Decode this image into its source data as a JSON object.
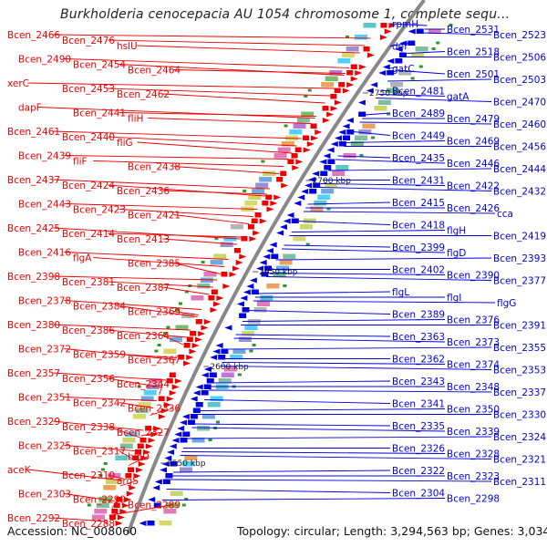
{
  "header": {
    "title": "Burkholderia cenocepacia AU 1054 chromosome 1, complete sequ..."
  },
  "footer": {
    "accession": "Accession: NC_008060",
    "topology": "Topology: circular; Length: 3,294,563 bp; Genes: 3,034"
  },
  "colors": {
    "reverse_strand": "#ee0000",
    "forward_strand": "#0000dd",
    "backbone": "#888888"
  },
  "scale_ticks": [
    "2750 kbp",
    "2700 kbp",
    "2650 kbp",
    "2600 kbp",
    "2550 kbp"
  ],
  "left_labels": [
    "Bcen_2466",
    "Bcen_2476",
    "hslU",
    "Bcen_2490",
    "Bcen_2454",
    "Bcen_2464",
    "xerC",
    "Bcen_2453",
    "Bcen_2462",
    "dapF",
    "Bcen_2441",
    "fliH",
    "Bcen_2461",
    "Bcen_2440",
    "fliG",
    "Bcen_2439",
    "fliF",
    "Bcen_2438",
    "Bcen_2437",
    "Bcen_2424",
    "Bcen_2436",
    "Bcen_2443",
    "Bcen_2423",
    "Bcen_2421",
    "Bcen_2425",
    "Bcen_2414",
    "Bcen_2413",
    "Bcen_2416",
    "flgA",
    "Bcen_2385",
    "Bcen_2398",
    "Bcen_2381",
    "Bcen_2387",
    "Bcen_2378",
    "Bcen_2384",
    "Bcen_2369",
    "Bcen_2380",
    "Bcen_2386",
    "Bcen_2364",
    "Bcen_2372",
    "Bcen_2359",
    "Bcen_2367",
    "Bcen_2357",
    "Bcen_2356",
    "Bcen_2344",
    "Bcen_2351",
    "Bcen_2342",
    "Bcen_2336",
    "Bcen_2329",
    "Bcen_2338",
    "Bcen_2327",
    "Bcen_2325",
    "Bcen_2317",
    "bioD",
    "aceK",
    "Bcen_2310",
    "argS",
    "Bcen_2303",
    "Bcen_2299",
    "Bcen_2289",
    "Bcen_2292",
    "Bcen_2288"
  ],
  "right_labels": [
    "rpmH",
    "Bcen_2531",
    "Bcen_2523",
    "def",
    "Bcen_2518",
    "Bcen_2506",
    "gatC",
    "Bcen_2501",
    "Bcen_2503",
    "Bcen_2481",
    "gatA",
    "Bcen_2470",
    "Bcen_2489",
    "Bcen_2479",
    "Bcen_2460",
    "Bcen_2449",
    "Bcen_2469",
    "Bcen_2456",
    "Bcen_2435",
    "Bcen_2446",
    "Bcen_2444",
    "Bcen_2431",
    "Bcen_2422",
    "Bcen_2432",
    "Bcen_2415",
    "Bcen_2426",
    "cca",
    "Bcen_2418",
    "flgH",
    "Bcen_2419",
    "Bcen_2399",
    "flgD",
    "Bcen_2393",
    "Bcen_2402",
    "Bcen_2390",
    "Bcen_2377",
    "flgL",
    "flgI",
    "flgG",
    "Bcen_2389",
    "Bcen_2376",
    "Bcen_2391",
    "Bcen_2363",
    "Bcen_2373",
    "Bcen_2355",
    "Bcen_2362",
    "Bcen_2374",
    "Bcen_2353",
    "Bcen_2343",
    "Bcen_2348",
    "Bcen_2337",
    "Bcen_2341",
    "Bcen_2350",
    "Bcen_2330",
    "Bcen_2335",
    "Bcen_2339",
    "Bcen_2324",
    "Bcen_2326",
    "Bcen_2328",
    "Bcen_2321",
    "Bcen_2322",
    "Bcen_2323",
    "Bcen_2311",
    "Bcen_2304",
    "Bcen_2298"
  ]
}
